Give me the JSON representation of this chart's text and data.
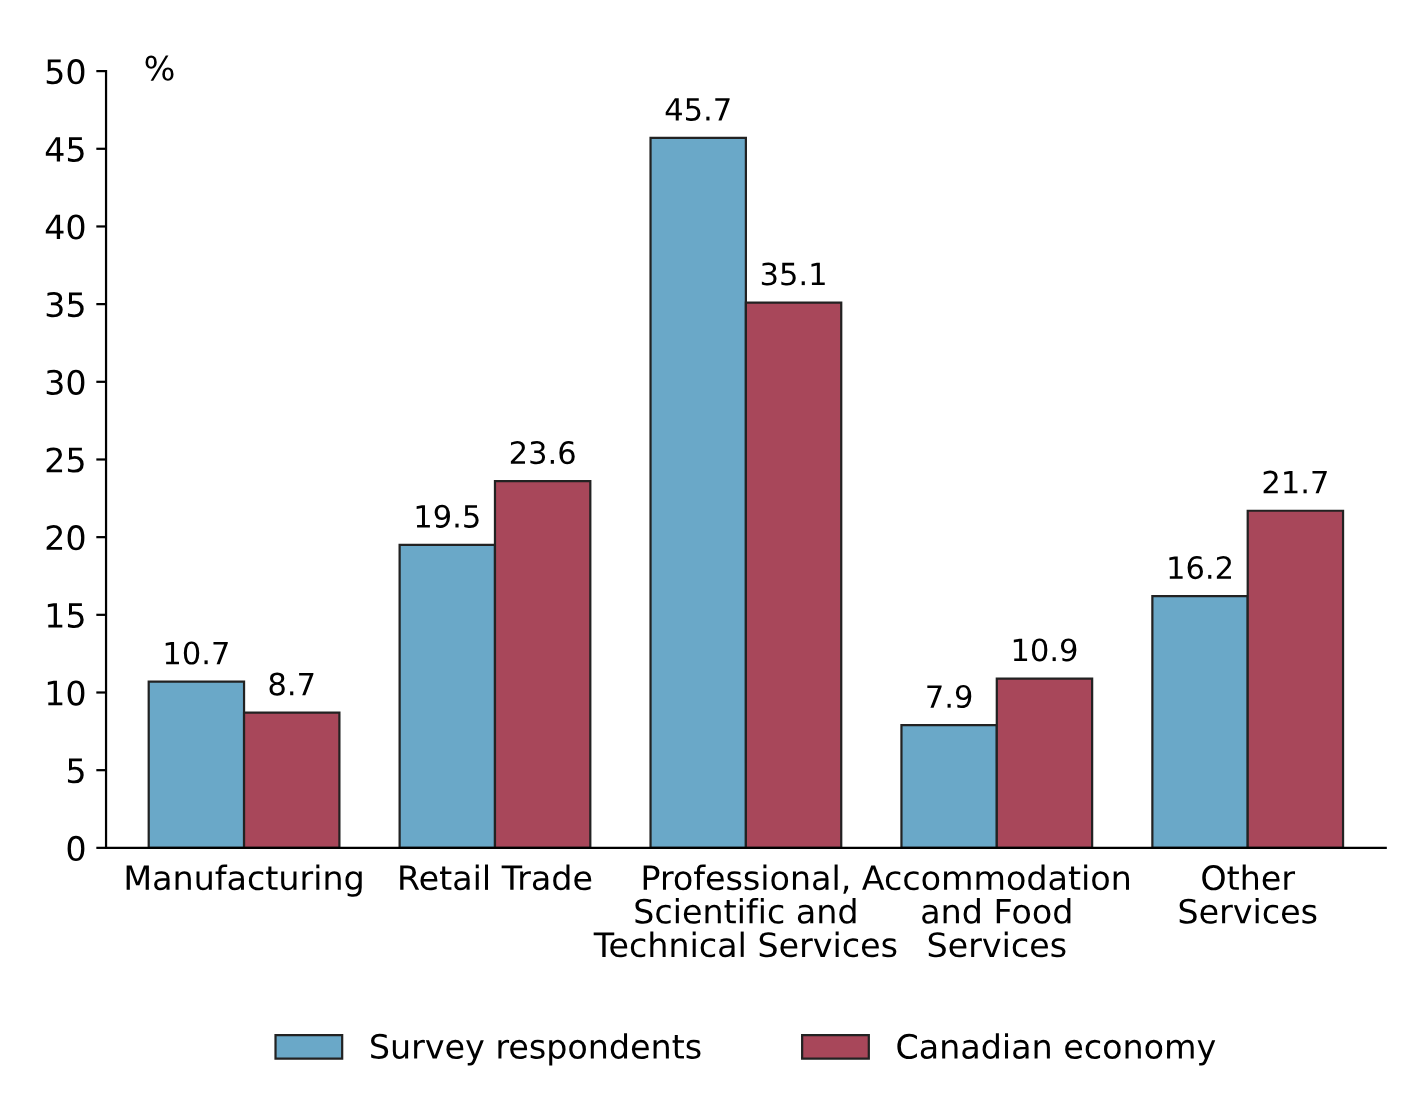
{
  "chart_data": {
    "type": "bar",
    "ylabel": "%",
    "categories": [
      "Manufacturing",
      "Retail Trade",
      "Professional,\nScientific and\nTechnical Services",
      "Accommodation\nand Food\nServices",
      "Other\nServices"
    ],
    "series": [
      {
        "name": "Survey respondents",
        "color": "#6aa8c8",
        "values": [
          10.7,
          19.5,
          45.7,
          7.9,
          16.2
        ]
      },
      {
        "name": "Canadian economy",
        "color": "#a8475a",
        "values": [
          8.7,
          23.6,
          35.1,
          10.9,
          21.7
        ]
      }
    ],
    "ylim": [
      0,
      50
    ],
    "yticks": [
      0,
      5,
      10,
      15,
      20,
      25,
      30,
      35,
      40,
      45,
      50
    ],
    "data_labels": true,
    "legend": "bottom",
    "grid": false
  }
}
